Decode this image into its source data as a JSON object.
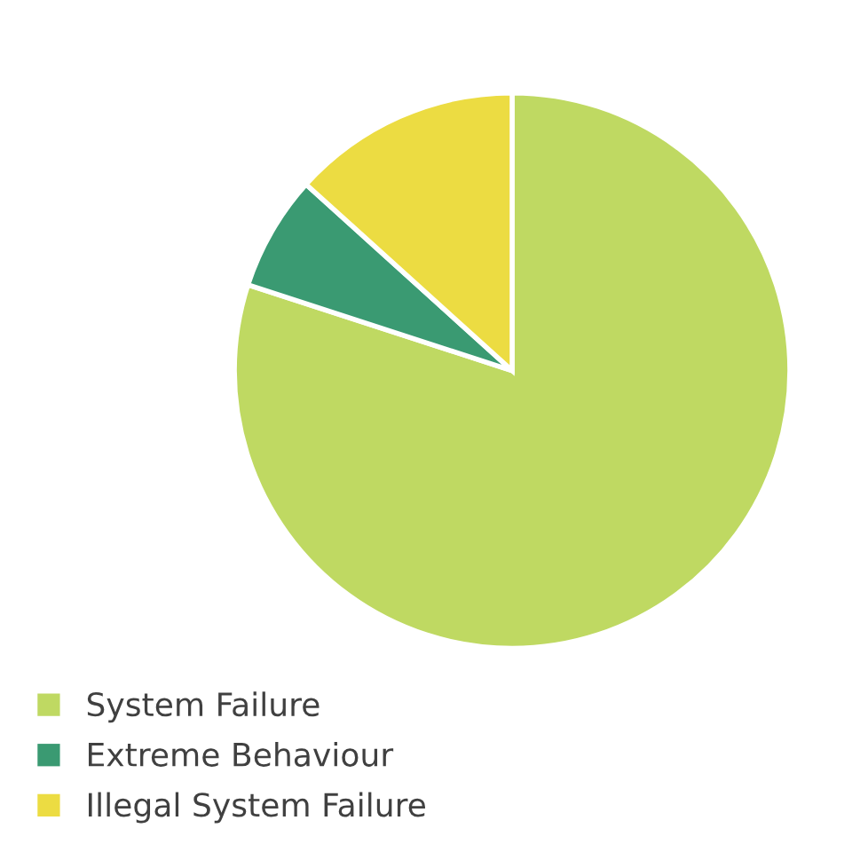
{
  "chart_data": {
    "type": "pie",
    "categories": [
      "System Failure",
      "Extreme Behaviour",
      "Illegal System Failure"
    ],
    "values": [
      80,
      6.7,
      13.3
    ],
    "colors": [
      "#bfd962",
      "#3a9a72",
      "#ecdc42"
    ],
    "legend": "bottom left"
  }
}
